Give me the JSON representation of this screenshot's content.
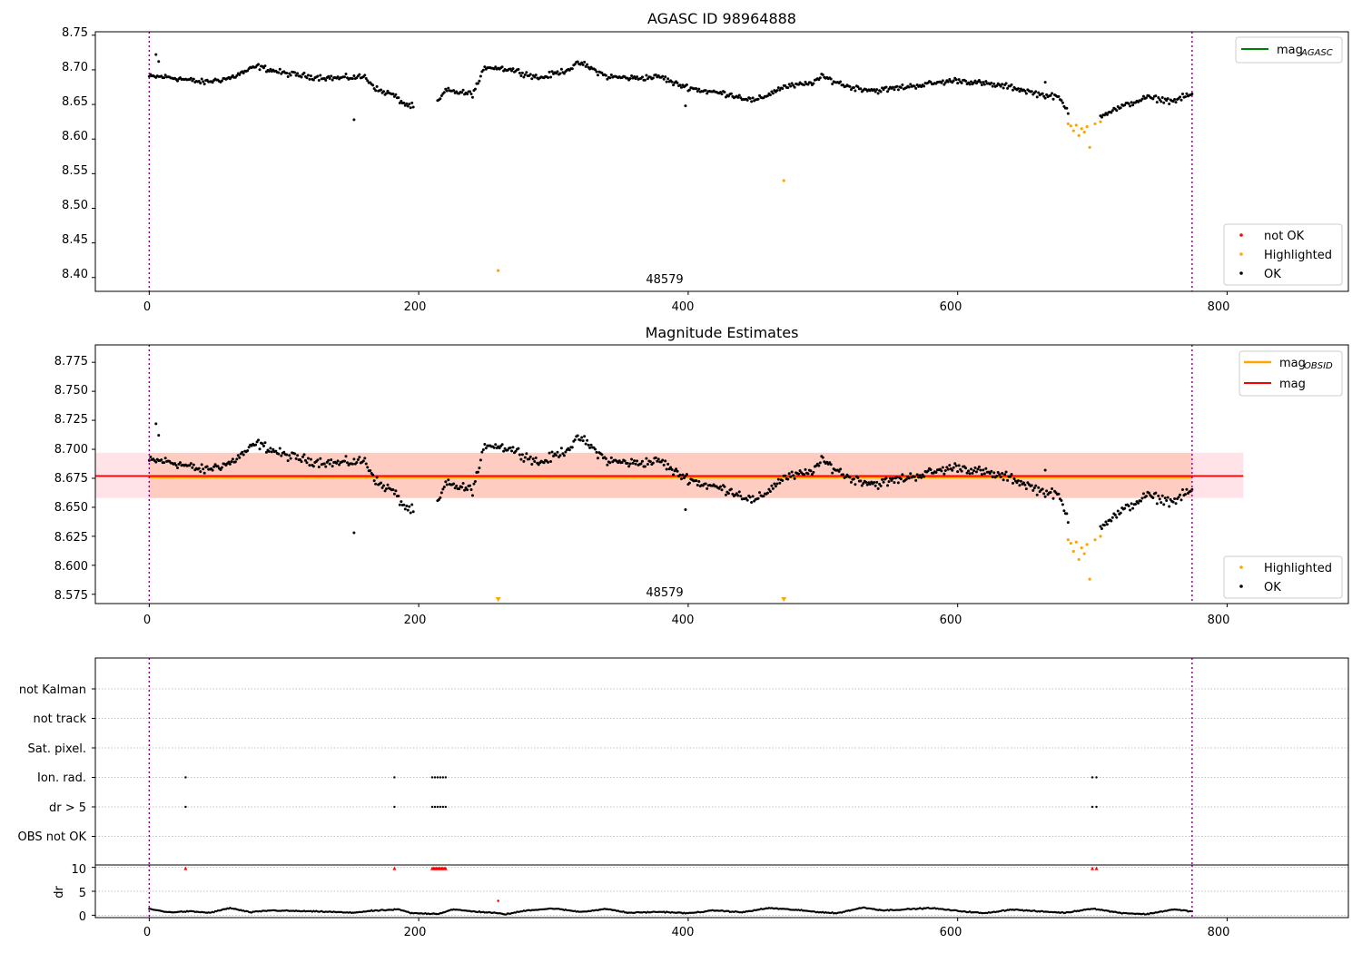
{
  "chart_data": [
    {
      "type": "scatter",
      "title": "AGASC ID 98964888",
      "xlabel": "",
      "ylabel": "",
      "xlim": [
        -40,
        890
      ],
      "ylim": [
        8.38,
        8.755
      ],
      "x_ticks": [
        0,
        200,
        400,
        600,
        800
      ],
      "y_ticks": [
        8.4,
        8.45,
        8.5,
        8.55,
        8.6,
        8.65,
        8.7,
        8.75
      ],
      "y_tick_labels": [
        "8.40",
        "8.45",
        "8.50",
        "8.55",
        "8.60",
        "8.65",
        "8.70",
        "8.75"
      ],
      "x_tick_labels": [
        "0",
        "200",
        "400",
        "600",
        "800"
      ],
      "vlines": [
        0,
        774
      ],
      "annotation": {
        "text": "48579",
        "x": 387,
        "y": 8.39
      },
      "legend_top": {
        "placement": "top-right",
        "entries": [
          {
            "label": "mag",
            "sub": "AGASC",
            "color": "#008000"
          }
        ]
      },
      "legend_bottom": {
        "placement": "bottom-right",
        "entries": [
          {
            "label": "not OK",
            "color": "#ff0000"
          },
          {
            "label": "Highlighted",
            "color": "#ffa500"
          },
          {
            "label": "OK",
            "color": "#000000"
          }
        ]
      },
      "series": [
        {
          "name": "OK",
          "color": "#000000",
          "profile": [
            [
              0,
              8.69
            ],
            [
              10,
              8.69
            ],
            [
              20,
              8.688
            ],
            [
              40,
              8.682
            ],
            [
              60,
              8.688
            ],
            [
              80,
              8.705
            ],
            [
              100,
              8.695
            ],
            [
              120,
              8.69
            ],
            [
              140,
              8.688
            ],
            [
              160,
              8.69
            ],
            [
              170,
              8.67
            ],
            [
              180,
              8.665
            ],
            [
              190,
              8.65
            ],
            [
              210,
              8.64
            ],
            [
              220,
              8.67
            ],
            [
              240,
              8.665
            ],
            [
              250,
              8.705
            ],
            [
              270,
              8.7
            ],
            [
              290,
              8.688
            ],
            [
              310,
              8.7
            ],
            [
              320,
              8.71
            ],
            [
              340,
              8.69
            ],
            [
              360,
              8.688
            ],
            [
              380,
              8.69
            ],
            [
              390,
              8.68
            ],
            [
              410,
              8.67
            ],
            [
              430,
              8.665
            ],
            [
              450,
              8.655
            ],
            [
              470,
              8.675
            ],
            [
              490,
              8.68
            ],
            [
              500,
              8.69
            ],
            [
              520,
              8.675
            ],
            [
              540,
              8.67
            ],
            [
              560,
              8.675
            ],
            [
              580,
              8.68
            ],
            [
              600,
              8.685
            ],
            [
              620,
              8.68
            ],
            [
              640,
              8.675
            ],
            [
              660,
              8.665
            ],
            [
              675,
              8.66
            ],
            [
              682,
              8.64
            ],
            [
              700,
              8.63
            ],
            [
              720,
              8.645
            ],
            [
              740,
              8.66
            ],
            [
              760,
              8.655
            ],
            [
              774,
              8.665
            ]
          ],
          "gaps": [
            [
              196,
              214
            ]
          ],
          "excl": [
            [
              683,
              705
            ]
          ],
          "noise": 0.006
        },
        {
          "name": "Highlighted",
          "color": "#ffa500",
          "points": [
            [
              259,
              8.41
            ],
            [
              471,
              8.54
            ],
            [
              682,
              8.622
            ],
            [
              684,
              8.619
            ],
            [
              686,
              8.612
            ],
            [
              688,
              8.62
            ],
            [
              690,
              8.605
            ],
            [
              692,
              8.615
            ],
            [
              694,
              8.61
            ],
            [
              696,
              8.618
            ],
            [
              698,
              8.588
            ],
            [
              702,
              8.622
            ],
            [
              706,
              8.625
            ]
          ]
        },
        {
          "name": "OK (extra)",
          "color": "#000000",
          "points": [
            [
              152,
              8.628
            ],
            [
              5,
              8.722
            ],
            [
              7,
              8.712
            ],
            [
              398,
              8.648
            ],
            [
              665,
              8.682
            ]
          ]
        }
      ]
    },
    {
      "type": "scatter",
      "title": "Magnitude Estimates",
      "xlabel": "",
      "ylabel": "",
      "xlim": [
        -40,
        890
      ],
      "ylim": [
        8.567,
        8.79
      ],
      "x_ticks": [
        0,
        200,
        400,
        600,
        800
      ],
      "x_tick_labels": [
        "0",
        "200",
        "400",
        "600",
        "800"
      ],
      "y_ticks": [
        8.575,
        8.6,
        8.625,
        8.65,
        8.675,
        8.7,
        8.725,
        8.75,
        8.775
      ],
      "y_tick_labels": [
        "8.575",
        "8.600",
        "8.625",
        "8.650",
        "8.675",
        "8.700",
        "8.725",
        "8.750",
        "8.775"
      ],
      "vlines": [
        0,
        774
      ],
      "annotation": {
        "text": "48579",
        "x": 387,
        "y": 8.5725
      },
      "bands": [
        {
          "x": [
            -40,
            812
          ],
          "y": [
            8.658,
            8.697
          ],
          "color": "#ffc0cb",
          "opacity": 0.45
        },
        {
          "x": [
            0,
            774
          ],
          "y": [
            8.658,
            8.697
          ],
          "color": "#ffa07a",
          "opacity": 0.35
        }
      ],
      "hlines": [
        {
          "name": "mag_OBSID",
          "y": 8.676,
          "x": [
            0,
            774
          ],
          "color": "#ffa500",
          "width": 2.5
        },
        {
          "name": "mag",
          "y": 8.677,
          "x": [
            -40,
            812
          ],
          "color": "#ff0000",
          "width": 1.8
        }
      ],
      "clipped_markers": [
        259,
        471
      ],
      "legend_top": {
        "placement": "top-right",
        "entries": [
          {
            "label": "mag",
            "sub": "OBSID",
            "color": "#ffa500"
          },
          {
            "label": "mag",
            "sub": "",
            "color": "#ff0000"
          }
        ]
      },
      "legend_bottom": {
        "placement": "bottom-right",
        "entries": [
          {
            "label": "Highlighted",
            "color": "#ffa500"
          },
          {
            "label": "OK",
            "color": "#000000"
          }
        ]
      }
    },
    {
      "type": "scatter",
      "title": "",
      "xlabel": "",
      "xlim": [
        -40,
        890
      ],
      "x_ticks": [
        0,
        200,
        400,
        600,
        800
      ],
      "x_tick_labels": [
        "0",
        "200",
        "400",
        "600",
        "800"
      ],
      "categories": [
        "not Kalman",
        "not track",
        "Sat. pixel.",
        "Ion. rad.",
        "dr > 5",
        "OBS not OK"
      ],
      "flags": {
        "Ion. rad.": [
          27,
          182,
          210,
          212,
          214,
          216,
          218,
          220,
          700,
          703
        ],
        "dr > 5": [
          27,
          182,
          210,
          212,
          214,
          216,
          218,
          220,
          700,
          703
        ]
      },
      "vlines": [
        0,
        774
      ],
      "dr_panel": {
        "ylabel": "dr",
        "ylim": [
          -0.5,
          10.5
        ],
        "y_ticks": [
          0,
          5,
          10
        ],
        "y_tick_labels": [
          "0",
          "5",
          "10"
        ],
        "clipped": [
          27,
          182,
          210,
          211,
          212,
          213,
          214,
          215,
          216,
          217,
          218,
          219,
          220,
          700,
          703
        ],
        "outlier": [
          259,
          3.0
        ],
        "profile": [
          [
            0,
            1.3
          ],
          [
            15,
            0.6
          ],
          [
            30,
            0.8
          ],
          [
            45,
            0.5
          ],
          [
            60,
            1.5
          ],
          [
            75,
            0.6
          ],
          [
            90,
            1.0
          ],
          [
            105,
            0.9
          ],
          [
            120,
            0.8
          ],
          [
            135,
            0.7
          ],
          [
            150,
            0.5
          ],
          [
            165,
            0.9
          ],
          [
            185,
            1.2
          ],
          [
            195,
            0.4
          ],
          [
            215,
            0.3
          ],
          [
            225,
            1.2
          ],
          [
            240,
            0.8
          ],
          [
            255,
            0.5
          ],
          [
            265,
            0.2
          ],
          [
            280,
            1.0
          ],
          [
            300,
            1.4
          ],
          [
            320,
            0.7
          ],
          [
            340,
            1.3
          ],
          [
            355,
            0.5
          ],
          [
            380,
            0.7
          ],
          [
            400,
            0.4
          ],
          [
            420,
            1.0
          ],
          [
            440,
            0.6
          ],
          [
            460,
            1.5
          ],
          [
            480,
            1.1
          ],
          [
            495,
            0.7
          ],
          [
            510,
            0.4
          ],
          [
            530,
            1.6
          ],
          [
            545,
            1.0
          ],
          [
            560,
            1.2
          ],
          [
            580,
            1.5
          ],
          [
            600,
            0.9
          ],
          [
            620,
            0.4
          ],
          [
            640,
            1.2
          ],
          [
            660,
            0.8
          ],
          [
            680,
            0.5
          ],
          [
            700,
            1.4
          ],
          [
            720,
            0.5
          ],
          [
            740,
            0.2
          ],
          [
            760,
            1.2
          ],
          [
            774,
            0.8
          ]
        ]
      }
    }
  ]
}
